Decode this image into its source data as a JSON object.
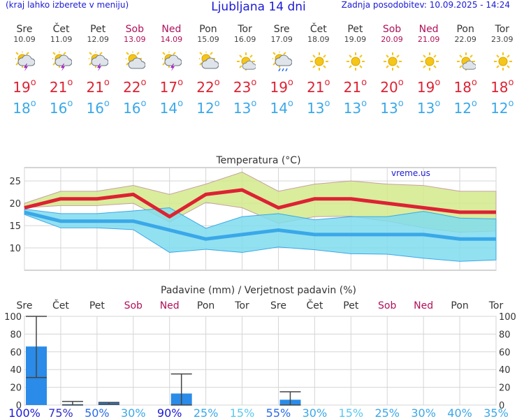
{
  "header": {
    "menu_hint": "(kraj lahko izberete v meniju)",
    "title": "Ljubljana 14 dni",
    "updated": "Zadnja posodobitev: 10.09.2025 - 14:24"
  },
  "forecast": [
    {
      "day": "Sre",
      "date": "10.09",
      "icon": "sun-cloud-lightning-icon",
      "max": "19",
      "min": "18",
      "weekend": false
    },
    {
      "day": "Čet",
      "date": "11.09",
      "icon": "sun-cloud-lightning-icon",
      "max": "21",
      "min": "16",
      "weekend": false
    },
    {
      "day": "Pet",
      "date": "12.09",
      "icon": "sun-cloud-lightning-icon",
      "max": "21",
      "min": "16",
      "weekend": false
    },
    {
      "day": "Sob",
      "date": "13.09",
      "icon": "sun-cloud-icon",
      "max": "22",
      "min": "16",
      "weekend": true
    },
    {
      "day": "Ned",
      "date": "14.09",
      "icon": "sun-cloud-lightning-icon",
      "max": "17",
      "min": "14",
      "weekend": true
    },
    {
      "day": "Pon",
      "date": "15.09",
      "icon": "sun-cloud-icon",
      "max": "22",
      "min": "12",
      "weekend": false
    },
    {
      "day": "Tor",
      "date": "16.09",
      "icon": "sun-small-cloud-icon",
      "max": "23",
      "min": "13",
      "weekend": false
    },
    {
      "day": "Sre",
      "date": "17.09",
      "icon": "sun-cloud-rain-icon",
      "max": "19",
      "min": "14",
      "weekend": false
    },
    {
      "day": "Čet",
      "date": "18.09",
      "icon": "sun-icon",
      "max": "21",
      "min": "13",
      "weekend": false
    },
    {
      "day": "Pet",
      "date": "19.09",
      "icon": "sun-icon",
      "max": "21",
      "min": "13",
      "weekend": false
    },
    {
      "day": "Sob",
      "date": "20.09",
      "icon": "sun-icon",
      "max": "20",
      "min": "13",
      "weekend": true
    },
    {
      "day": "Ned",
      "date": "21.09",
      "icon": "sun-icon",
      "max": "19",
      "min": "13",
      "weekend": true
    },
    {
      "day": "Pon",
      "date": "22.09",
      "icon": "sun-small-cloud-icon",
      "max": "18",
      "min": "12",
      "weekend": false
    },
    {
      "day": "Tor",
      "date": "23.09",
      "icon": "sun-icon",
      "max": "18",
      "min": "12",
      "weekend": false
    }
  ],
  "colors": {
    "max": "#dd2233",
    "min": "#3aa8e8",
    "weekend": "#b0105a",
    "rain": "#2a8be8"
  },
  "chart_data": [
    {
      "type": "line",
      "title": "Temperatura (°C)",
      "watermark": "vreme.us",
      "ylim": [
        5,
        28
      ],
      "yticks": [
        10,
        15,
        20,
        25
      ],
      "grid": true,
      "x": [
        "10.09",
        "11.09",
        "12.09",
        "13.09",
        "14.09",
        "15.09",
        "16.09",
        "17.09",
        "18.09",
        "19.09",
        "20.09",
        "21.09",
        "22.09",
        "23.09"
      ],
      "series": [
        {
          "role": "max",
          "color": "#dd2233",
          "values": [
            19,
            21,
            21,
            22,
            17,
            22,
            23,
            19,
            21,
            21,
            20,
            19,
            18,
            18
          ]
        },
        {
          "role": "min",
          "color": "#3aa8e8",
          "values": [
            18,
            16,
            16,
            16,
            14,
            12,
            13,
            14,
            13,
            13,
            13,
            13,
            12,
            12
          ]
        }
      ],
      "max_band": {
        "upper": [
          20,
          22.7,
          22.7,
          24,
          22,
          24.3,
          27,
          22.7,
          24.3,
          25,
          24.3,
          24,
          22.7,
          22.7
        ],
        "lower": [
          19,
          19.5,
          19.5,
          20,
          15.8,
          20.2,
          19,
          15.5,
          17,
          17.1,
          16,
          14.5,
          13.5,
          13.8
        ]
      },
      "min_band": {
        "upper": [
          18.7,
          17.7,
          17.7,
          18.3,
          19,
          14.4,
          17,
          17.7,
          16.3,
          17,
          17,
          18.2,
          16.7,
          16.5
        ],
        "lower": [
          17.5,
          14.5,
          14.5,
          14.1,
          9,
          9.7,
          9,
          10.2,
          9.6,
          8.7,
          8.6,
          7.7,
          7,
          7.3
        ]
      }
    },
    {
      "type": "bar",
      "title": "Padavine (mm) / Verjetnost padavin (%)",
      "ylim": [
        0,
        100
      ],
      "yticks": [
        0,
        20,
        40,
        60,
        80,
        100
      ],
      "categories": [
        "Sre",
        "Čet",
        "Pet",
        "Sob",
        "Ned",
        "Pon",
        "Tor",
        "Sre",
        "Čet",
        "Pet",
        "Sob",
        "Ned",
        "Pon",
        "Tor"
      ],
      "weekend": [
        false,
        false,
        false,
        true,
        true,
        false,
        false,
        false,
        false,
        false,
        true,
        true,
        false,
        false
      ],
      "values": [
        66,
        1,
        3,
        0,
        13,
        0,
        0,
        6,
        0,
        0,
        0,
        0,
        0,
        0
      ],
      "error_low": [
        31,
        0,
        1,
        0,
        0,
        0,
        0,
        0,
        0,
        0,
        0,
        0,
        0,
        0
      ],
      "error_high": [
        100,
        4,
        3,
        0,
        35,
        0,
        0,
        15,
        0,
        0,
        0,
        0,
        0,
        0
      ],
      "probability": [
        "100%",
        "75%",
        "50%",
        "30%",
        "90%",
        "25%",
        "15%",
        "55%",
        "30%",
        "15%",
        "25%",
        "30%",
        "40%",
        "35%"
      ],
      "probability_colors": [
        "#1a1ad6",
        "#3030c8",
        "#2a6be8",
        "#3aa8e8",
        "#1a1ad6",
        "#3aa8e8",
        "#5ac8f0",
        "#2a6be8",
        "#3aa8e8",
        "#5ac8f0",
        "#3aa8e8",
        "#3aa8e8",
        "#3aa8e8",
        "#3aa8e8"
      ]
    }
  ]
}
